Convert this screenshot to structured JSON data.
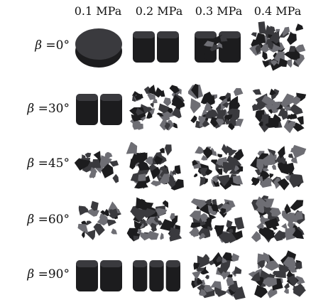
{
  "columns": [
    "0.1 MPa",
    "0.2 MPa",
    "0.3 MPa",
    "0.4 MPa"
  ],
  "rows": [
    {
      "symbol": "β",
      "angle": " =0°",
      "states": [
        "intact",
        "split",
        "split-fragmented",
        "crushed"
      ]
    },
    {
      "symbol": "β",
      "angle": " =30°",
      "states": [
        "split",
        "crushed",
        "crushed",
        "crushed"
      ]
    },
    {
      "symbol": "β",
      "angle": " =45°",
      "states": [
        "fragmented",
        "crushed",
        "crushed",
        "crushed"
      ]
    },
    {
      "symbol": "β",
      "angle": " =60°",
      "states": [
        "fragmented",
        "crushed",
        "crushed",
        "crushed"
      ]
    },
    {
      "symbol": "β",
      "angle": " =90°",
      "states": [
        "split",
        "split-multi",
        "crushed",
        "crushed"
      ]
    }
  ],
  "colors": {
    "specimen_dark": "#1c1c1e",
    "specimen_mid": "#3a3a3e",
    "specimen_light": "#6e6e74",
    "background": "#ffffff"
  }
}
